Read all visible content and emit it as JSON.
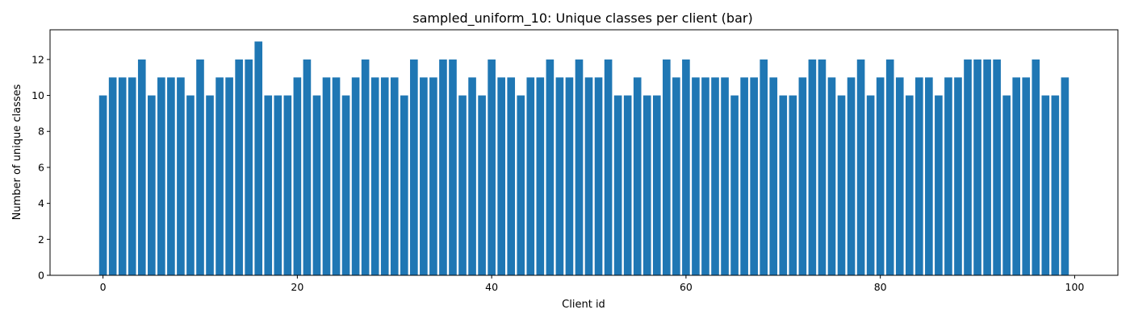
{
  "chart_data": {
    "type": "bar",
    "title": "sampled_uniform_10: Unique classes per client (bar)",
    "xlabel": "Client id",
    "ylabel": "Number of unique classes",
    "xlim": [
      -5.45,
      104.45
    ],
    "ylim": [
      0,
      13.65
    ],
    "xticks": [
      0,
      20,
      40,
      60,
      80,
      100
    ],
    "yticks": [
      0,
      2,
      4,
      6,
      8,
      10,
      12
    ],
    "grid": false,
    "colors": {
      "bar": "#1f77b4"
    },
    "x": [
      0,
      1,
      2,
      3,
      4,
      5,
      6,
      7,
      8,
      9,
      10,
      11,
      12,
      13,
      14,
      15,
      16,
      17,
      18,
      19,
      20,
      21,
      22,
      23,
      24,
      25,
      26,
      27,
      28,
      29,
      30,
      31,
      32,
      33,
      34,
      35,
      36,
      37,
      38,
      39,
      40,
      41,
      42,
      43,
      44,
      45,
      46,
      47,
      48,
      49,
      50,
      51,
      52,
      53,
      54,
      55,
      56,
      57,
      58,
      59,
      60,
      61,
      62,
      63,
      64,
      65,
      66,
      67,
      68,
      69,
      70,
      71,
      72,
      73,
      74,
      75,
      76,
      77,
      78,
      79,
      80,
      81,
      82,
      83,
      84,
      85,
      86,
      87,
      88,
      89,
      90,
      91,
      92,
      93,
      94,
      95,
      96,
      97,
      98,
      99
    ],
    "values": [
      10,
      11,
      11,
      11,
      12,
      10,
      11,
      11,
      11,
      10,
      12,
      10,
      11,
      11,
      12,
      12,
      13,
      10,
      10,
      10,
      11,
      12,
      10,
      11,
      11,
      10,
      11,
      12,
      11,
      11,
      11,
      10,
      12,
      11,
      11,
      12,
      12,
      10,
      11,
      10,
      12,
      11,
      11,
      10,
      11,
      11,
      12,
      11,
      11,
      12,
      11,
      11,
      12,
      10,
      10,
      11,
      10,
      10,
      12,
      11,
      12,
      11,
      11,
      11,
      11,
      10,
      11,
      11,
      12,
      11,
      10,
      10,
      11,
      12,
      12,
      11,
      10,
      11,
      12,
      10,
      11,
      12,
      11,
      10,
      11,
      11,
      10,
      11,
      11,
      12,
      12,
      12,
      12,
      10,
      11,
      11,
      12,
      10,
      10,
      11
    ]
  }
}
